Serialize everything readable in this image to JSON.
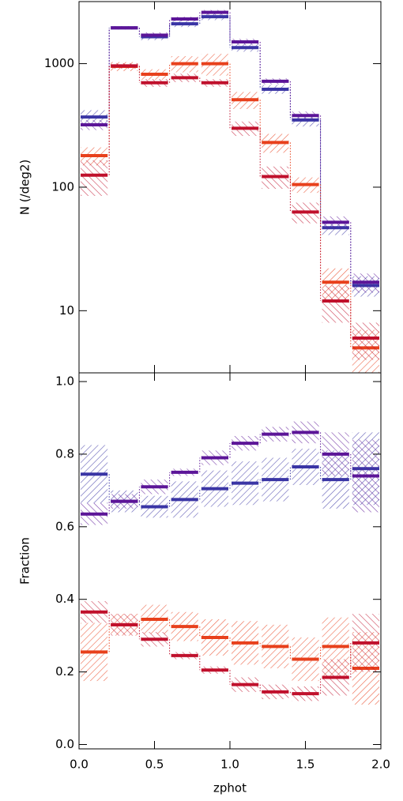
{
  "chart_data": [
    {
      "type": "histogram",
      "ylabel": "N (/deg2)",
      "log": true,
      "bins": [
        0,
        0.2,
        0.4,
        0.6,
        0.8,
        1.0,
        1.2,
        1.4,
        1.6,
        1.8,
        2.0
      ],
      "xlim": [
        0,
        2
      ],
      "ylim": [
        3.14,
        3180
      ],
      "yticks": [
        10,
        100,
        1000
      ],
      "series": [
        {
          "color": "#3a35a5",
          "values": [
            370,
            1950,
            1650,
            2100,
            2400,
            1350,
            620,
            350,
            47,
            16
          ],
          "errors": [
            50,
            60,
            100,
            120,
            150,
            100,
            50,
            40,
            6,
            3
          ]
        },
        {
          "color": "#5c1598",
          "values": [
            320,
            1950,
            1700,
            2300,
            2600,
            1500,
            720,
            380,
            52,
            17
          ],
          "errors": [
            30,
            50,
            90,
            100,
            120,
            90,
            40,
            30,
            6,
            3
          ]
        },
        {
          "color": "#e8401c",
          "values": [
            180,
            950,
            820,
            1000,
            1000,
            510,
            230,
            105,
            17,
            5
          ],
          "errors": [
            30,
            80,
            80,
            150,
            200,
            80,
            40,
            15,
            5,
            2
          ]
        },
        {
          "color": "#c0102c",
          "values": [
            125,
            960,
            700,
            770,
            700,
            300,
            122,
            63,
            12,
            6
          ],
          "errors": [
            40,
            50,
            50,
            60,
            50,
            40,
            25,
            12,
            4,
            2
          ]
        }
      ]
    },
    {
      "type": "histogram",
      "ylabel": "Fraction",
      "xlabel": "zphot",
      "bins": [
        0,
        0.2,
        0.4,
        0.6,
        0.8,
        1.0,
        1.2,
        1.4,
        1.6,
        1.8,
        2.0
      ],
      "xlim": [
        0,
        2
      ],
      "ylim": [
        -0.012,
        1.024
      ],
      "xticks": [
        {
          "value": 0,
          "label": "0.0"
        },
        0.5,
        {
          "value": 1,
          "label": "1.0"
        },
        1.5,
        {
          "value": 2,
          "label": "2.0"
        }
      ],
      "yticks": [
        {
          "value": 0,
          "label": "0.0"
        },
        0.2,
        0.4,
        0.6,
        0.8,
        {
          "value": 1,
          "label": "1.0"
        }
      ],
      "series": [
        {
          "color": "#3a35a5",
          "values": [
            0.745,
            0.67,
            0.655,
            0.675,
            0.705,
            0.72,
            0.73,
            0.765,
            0.73,
            0.76
          ],
          "errors": [
            0.08,
            0.03,
            0.03,
            0.05,
            0.05,
            0.06,
            0.06,
            0.05,
            0.08,
            0.1
          ]
        },
        {
          "color": "#5c1598",
          "values": [
            0.635,
            0.67,
            0.71,
            0.75,
            0.79,
            0.83,
            0.855,
            0.86,
            0.8,
            0.74
          ],
          "errors": [
            0.03,
            0.02,
            0.02,
            0.01,
            0.02,
            0.02,
            0.02,
            0.03,
            0.06,
            0.1
          ]
        },
        {
          "color": "#e8401c",
          "values": [
            0.255,
            0.33,
            0.345,
            0.325,
            0.295,
            0.28,
            0.27,
            0.235,
            0.27,
            0.21
          ],
          "errors": [
            0.08,
            0.03,
            0.04,
            0.04,
            0.05,
            0.06,
            0.06,
            0.06,
            0.08,
            0.1
          ]
        },
        {
          "color": "#c0102c",
          "values": [
            0.365,
            0.33,
            0.29,
            0.245,
            0.205,
            0.165,
            0.145,
            0.14,
            0.185,
            0.28
          ],
          "errors": [
            0.03,
            0.03,
            0.02,
            0.01,
            0.01,
            0.02,
            0.02,
            0.02,
            0.05,
            0.08
          ]
        }
      ]
    }
  ]
}
